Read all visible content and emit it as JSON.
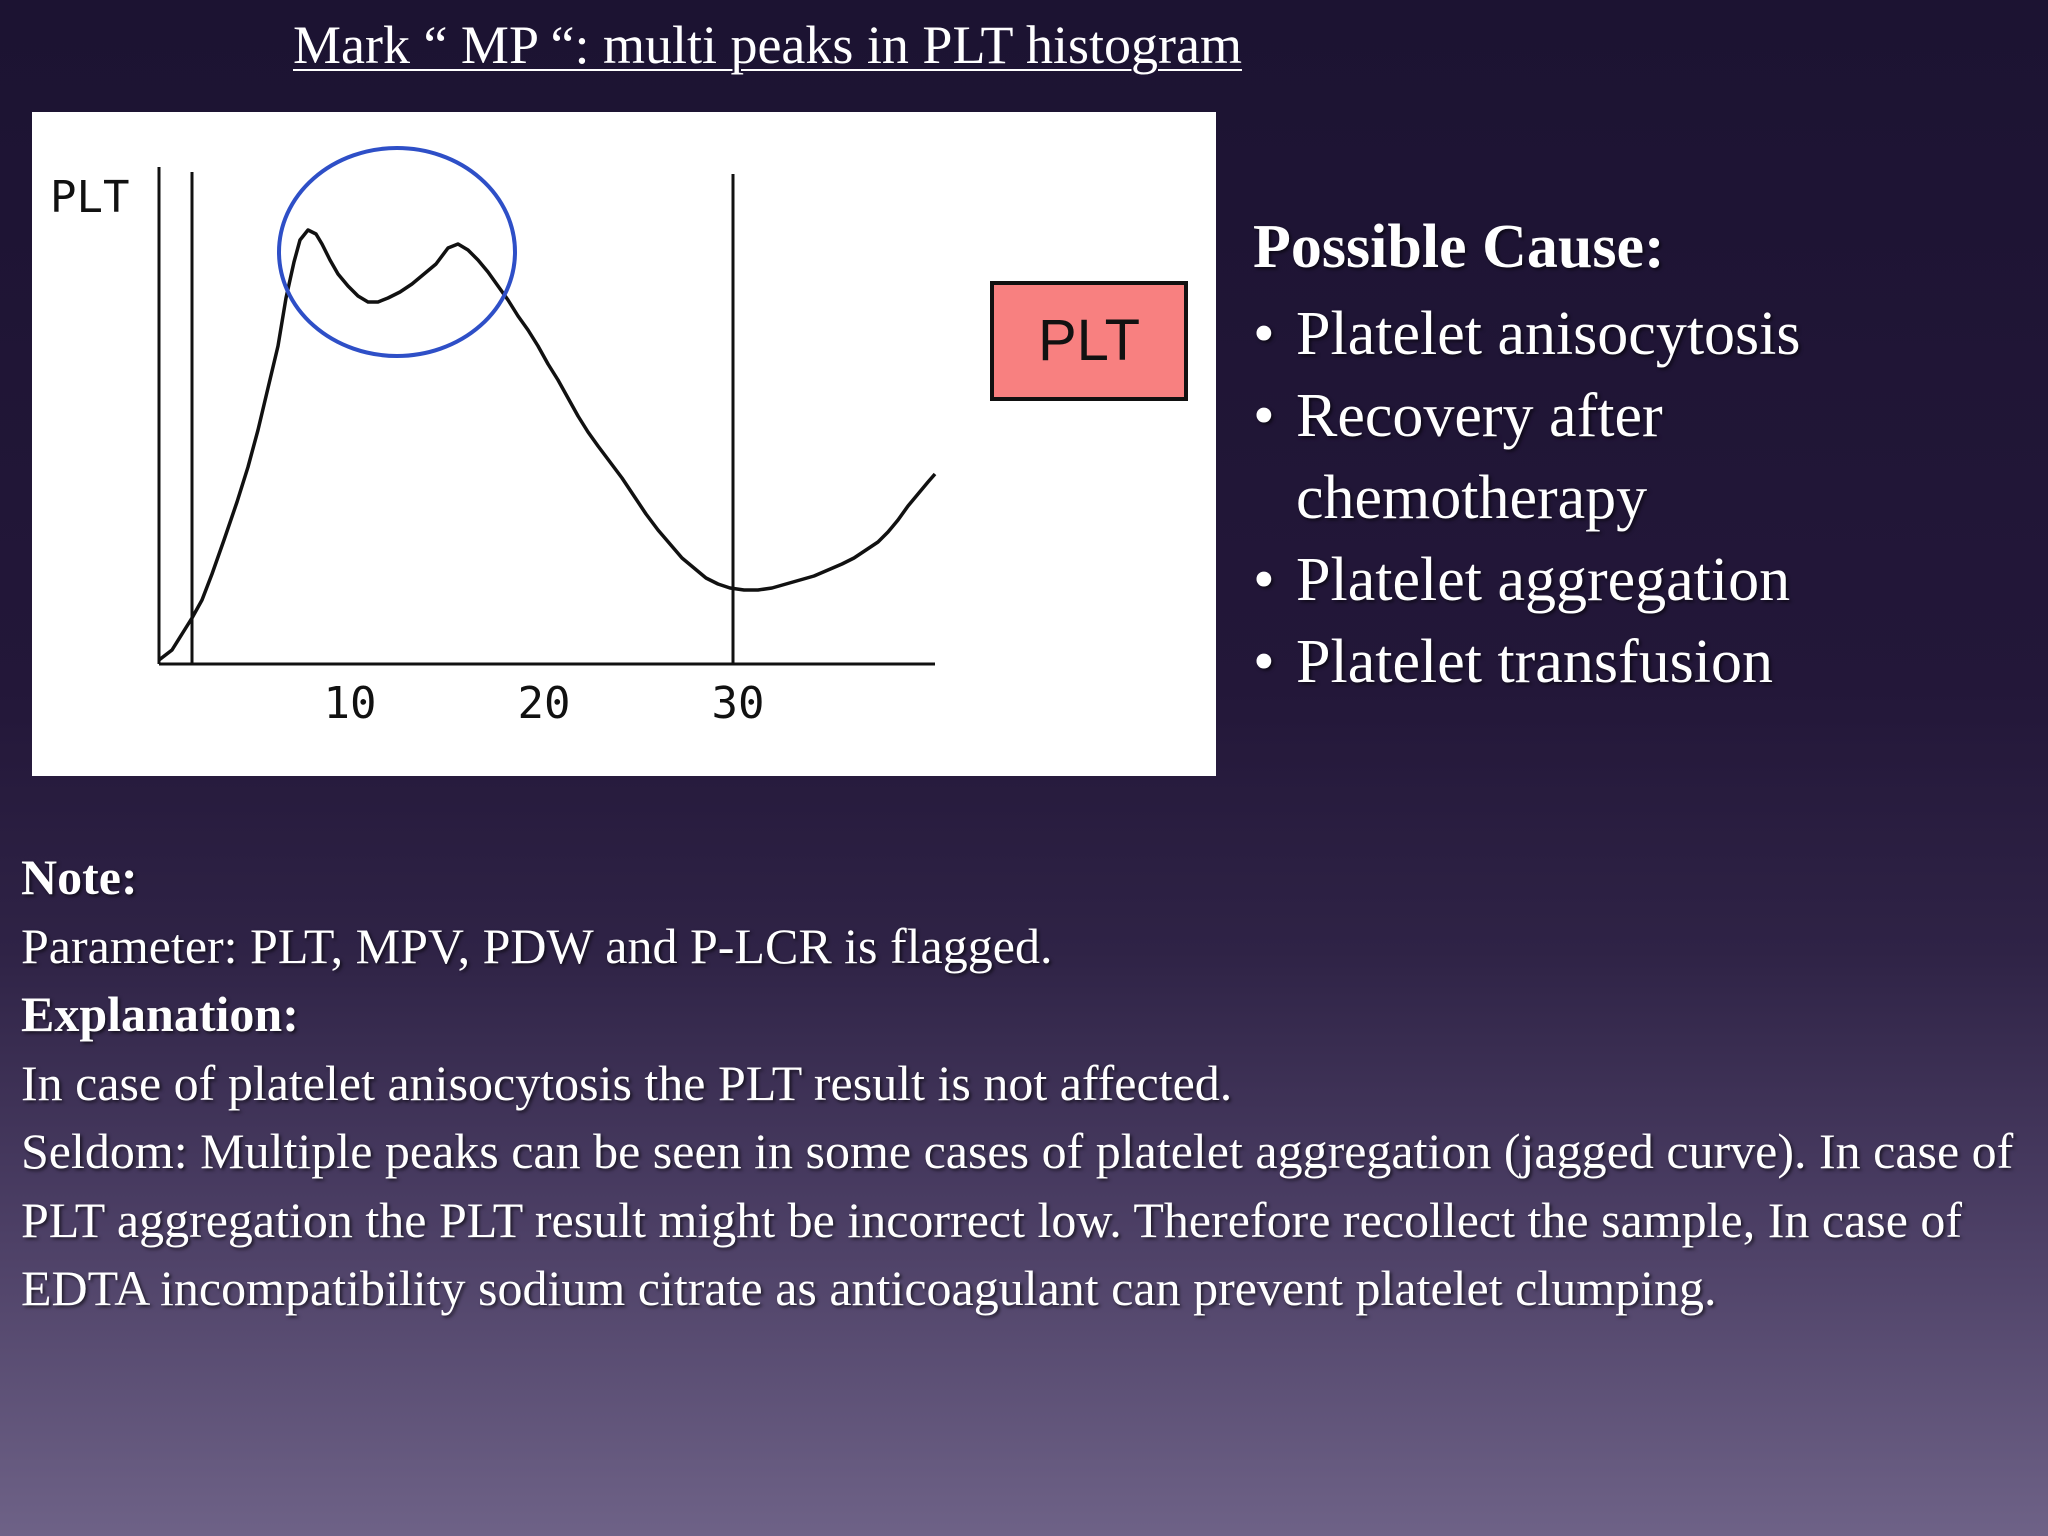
{
  "title": "Mark “ MP “: multi peaks in PLT histogram",
  "figure": {
    "y_axis_label": "PLT",
    "x_ticks": [
      "10",
      "20",
      "30"
    ],
    "flag_box_label": "PLT",
    "flag_box_color": "#f88080",
    "highlight_circle_color": "#2e4fc7"
  },
  "possible_cause": {
    "heading": "Possible Cause:",
    "items": [
      {
        "line1": "Platelet anisocytosis",
        "line2": ""
      },
      {
        "line1": "Recovery after",
        "line2": "chemotherapy"
      },
      {
        "line1": "Platelet aggregation",
        "line2": ""
      },
      {
        "line1": "Platelet transfusion",
        "line2": ""
      }
    ],
    "bullet": "•"
  },
  "notes": {
    "note_heading": "Note:",
    "parameter_line": "Parameter: PLT, MPV, PDW and P-LCR is flagged.",
    "explanation_heading": "Explanation:",
    "explanation_line1": "In case of platelet anisocytosis the PLT result is not affected.",
    "explanation_line2": "Seldom: Multiple peaks can be seen in some cases of platelet aggregation (jagged curve). In case of PLT aggregation the PLT result might be incorrect low. Therefore recollect the sample, In case of EDTA incompatibility sodium citrate as anticoagulant can prevent platelet clumping."
  }
}
